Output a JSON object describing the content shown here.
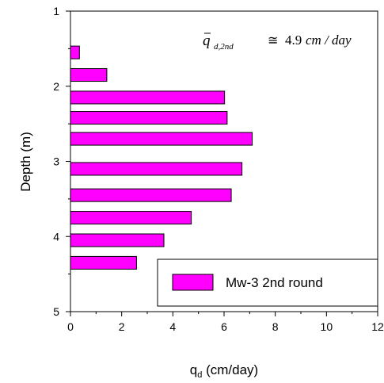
{
  "chart_data": {
    "type": "bar",
    "orientation": "horizontal",
    "depth": [
      1.55,
      1.85,
      2.15,
      2.42,
      2.7,
      3.1,
      3.45,
      3.75,
      4.05,
      4.35
    ],
    "values": [
      0.35,
      1.42,
      6.02,
      6.12,
      7.1,
      6.7,
      6.28,
      4.72,
      3.65,
      2.58
    ],
    "series": [
      {
        "name": "Mw-3 2nd round"
      }
    ],
    "xlabel": "q",
    "xlabel_sub": "d",
    "xlabel_units": " (cm/day)",
    "ylabel": "Depth (m)",
    "xlim": [
      0,
      12
    ],
    "ylim": [
      5,
      1
    ],
    "xticks": [
      "0",
      "2",
      "4",
      "6",
      "8",
      "10",
      "12"
    ],
    "yticks": [
      "1",
      "2",
      "3",
      "4",
      "5"
    ],
    "bar_color": "#ff00ff",
    "grid": false,
    "legend_position": "lower-right",
    "annotation": {
      "symbol": "q",
      "subscript": "d,2nd",
      "relation": "≅",
      "value": "4.9",
      "units": "cm / day"
    }
  }
}
